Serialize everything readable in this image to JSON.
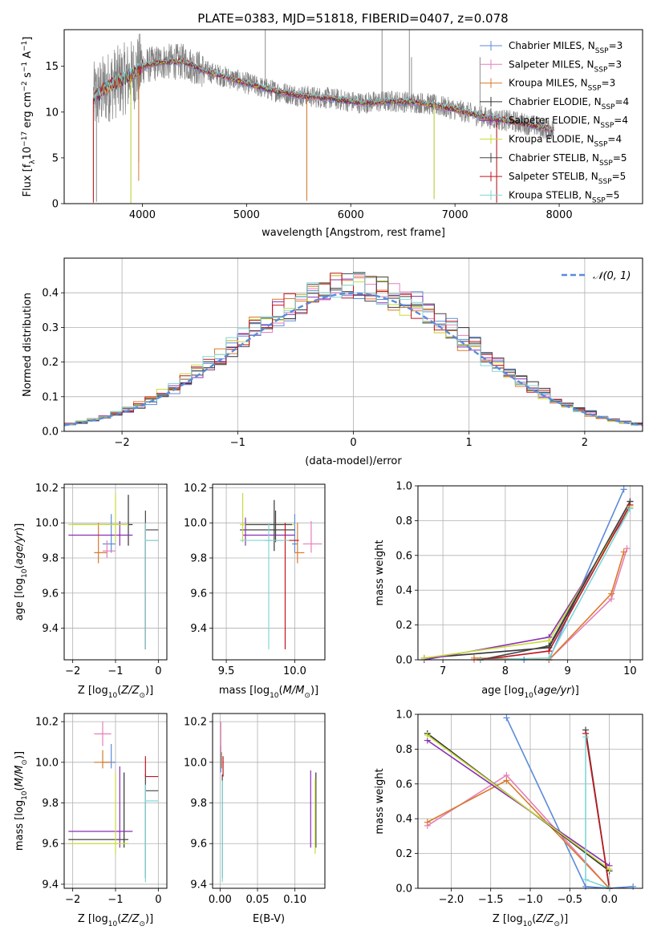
{
  "title": "PLATE=0383, MJD=51818, FIBERID=0407, z=0.078",
  "colors": {
    "chab_miles": "#5b8bd9",
    "salp_miles": "#e57fb8",
    "krou_miles": "#d97a2b",
    "chab_elodie": "#333333",
    "salp_elodie": "#8a2fb5",
    "krou_elodie": "#c8dc3c",
    "chab_stelib": "#444444",
    "salp_stelib": "#c0161e",
    "krou_stelib": "#7fd6d6",
    "data": "#808080",
    "grid": "#b0b0b0",
    "normal": "#5b8bd9"
  },
  "chart_data": [
    {
      "id": "spectrum",
      "type": "line",
      "xlabel": "wavelength [Angstrom, rest frame]",
      "ylabel": "Flux [f_λ10^-17 erg cm^-2 s^-1 A^-1]",
      "xlim": [
        3250,
        8800
      ],
      "ylim": [
        0,
        19
      ],
      "xticks": [
        4000,
        5000,
        6000,
        7000,
        8000
      ],
      "yticks": [
        0,
        5,
        10,
        15
      ],
      "legend": [
        {
          "label": "Chabrier MILES, N",
          "sub": "SSP",
          "tail": "=3",
          "color": "chab_miles"
        },
        {
          "label": "Salpeter MILES, N",
          "sub": "SSP",
          "tail": "=3",
          "color": "salp_miles"
        },
        {
          "label": "Kroupa MILES, N",
          "sub": "SSP",
          "tail": "=3",
          "color": "krou_miles"
        },
        {
          "label": "Chabrier ELODIE, N",
          "sub": "SSP",
          "tail": "=4",
          "color": "chab_elodie"
        },
        {
          "label": "Salpeter ELODIE, N",
          "sub": "SSP",
          "tail": "=4",
          "color": "salp_elodie"
        },
        {
          "label": "Kroupa ELODIE, N",
          "sub": "SSP",
          "tail": "=4",
          "color": "krou_elodie"
        },
        {
          "label": "Chabrier STELIB, N",
          "sub": "SSP",
          "tail": "=5",
          "color": "chab_stelib"
        },
        {
          "label": "Salpeter STELIB, N",
          "sub": "SSP",
          "tail": "=5",
          "color": "salp_stelib"
        },
        {
          "label": "Kroupa STELIB, N",
          "sub": "SSP",
          "tail": "=5",
          "color": "krou_stelib"
        }
      ],
      "continuum": [
        [
          3530,
          11.5
        ],
        [
          3700,
          13.0
        ],
        [
          3900,
          14.0
        ],
        [
          4000,
          15.0
        ],
        [
          4200,
          15.5
        ],
        [
          4400,
          15.5
        ],
        [
          4600,
          14.5
        ],
        [
          4900,
          13.5
        ],
        [
          5200,
          12.5
        ],
        [
          5500,
          11.8
        ],
        [
          5800,
          11.5
        ],
        [
          6100,
          11.0
        ],
        [
          6400,
          11.2
        ],
        [
          6700,
          11.0
        ],
        [
          7000,
          10.3
        ],
        [
          7300,
          9.4
        ],
        [
          7600,
          8.9
        ],
        [
          7800,
          8.4
        ],
        [
          7950,
          8.0
        ]
      ],
      "spikes": [
        [
          3530,
          0.3
        ],
        [
          3560,
          0.2
        ],
        [
          3890,
          0.1
        ],
        [
          3965,
          4.5
        ],
        [
          5180,
          19
        ],
        [
          5578,
          0.5
        ],
        [
          6300,
          19
        ],
        [
          6562,
          19
        ],
        [
          6583,
          16
        ],
        [
          6800,
          0.5
        ],
        [
          7240,
          16
        ],
        [
          7400,
          0.2
        ]
      ]
    },
    {
      "id": "residuals",
      "type": "line",
      "xlabel": "(data-model)/error",
      "ylabel": "Normed distribution",
      "xlim": [
        -2.5,
        2.5
      ],
      "ylim": [
        0,
        0.5
      ],
      "xticks": [
        -2,
        -1,
        0,
        1,
        2
      ],
      "yticks": [
        0.0,
        0.1,
        0.2,
        0.3,
        0.4
      ],
      "legend": "𝒩(0, 1)",
      "bin_width": 0.1
    },
    {
      "id": "z_age",
      "type": "scatter",
      "xlabel": "Z [log10(Z/Z⊙)]",
      "ylabel": "age  [log10(age/yr)]",
      "xlim": [
        -2.2,
        0.2
      ],
      "ylim": [
        9.22,
        10.22
      ],
      "xticks": [
        -2,
        -1,
        0
      ],
      "yticks": [
        9.4,
        9.6,
        9.8,
        10.0,
        10.2
      ],
      "points": [
        {
          "c": "chab_miles",
          "x": -1.1,
          "xerr": [
            0.2,
            0.1
          ],
          "y": 9.88,
          "yerr": [
            0.05,
            0.17
          ]
        },
        {
          "c": "salp_miles",
          "x": -1.2,
          "xerr": [
            0.1,
            0.2
          ],
          "y": 9.84,
          "yerr": [
            0.04,
            0.06
          ]
        },
        {
          "c": "krou_miles",
          "x": -1.4,
          "xerr": [
            0.1,
            0.2
          ],
          "y": 9.83,
          "yerr": [
            0.06,
            0.17
          ]
        },
        {
          "c": "chab_elodie",
          "x": -0.7,
          "xerr": [
            1.3,
            0.1
          ],
          "y": 9.99,
          "yerr": [
            0.12,
            0.17
          ]
        },
        {
          "c": "salp_elodie",
          "x": -0.9,
          "xerr": [
            1.2,
            0.3
          ],
          "y": 9.93,
          "yerr": [
            0.06,
            0.08
          ]
        },
        {
          "c": "krou_elodie",
          "x": -1.0,
          "xerr": [
            1.1,
            0.3
          ],
          "y": 9.99,
          "yerr": [
            0.1,
            0.18
          ]
        },
        {
          "c": "chab_stelib",
          "x": -0.3,
          "xerr": [
            0.0,
            0.3
          ],
          "y": 9.96,
          "yerr": [
            0.68,
            0.11
          ]
        },
        {
          "c": "salp_stelib",
          "x": -0.3,
          "xerr": [
            0.0,
            0.3
          ],
          "y": 9.9,
          "yerr": [
            0.62,
            0.1
          ]
        },
        {
          "c": "krou_stelib",
          "x": -0.3,
          "xerr": [
            0.0,
            0.3
          ],
          "y": 9.9,
          "yerr": [
            0.62,
            0.1
          ]
        }
      ]
    },
    {
      "id": "mass_age",
      "type": "scatter",
      "xlabel": "mass [log10(M/M⊙)]",
      "ylabel": "",
      "xlim": [
        9.4,
        10.22
      ],
      "ylim": [
        9.22,
        10.22
      ],
      "xticks": [
        9.5,
        10.0
      ],
      "yticks": [
        9.4,
        9.6,
        9.8,
        10.0,
        10.2
      ],
      "points": [
        {
          "c": "chab_miles",
          "x": 10.0,
          "xerr": [
            0.02,
            0.02
          ],
          "y": 9.88,
          "yerr": [
            0.05,
            0.17
          ]
        },
        {
          "c": "salp_miles",
          "x": 10.12,
          "xerr": [
            0.06,
            0.08
          ],
          "y": 9.88,
          "yerr": [
            0.05,
            0.13
          ]
        },
        {
          "c": "krou_miles",
          "x": 10.02,
          "xerr": [
            0.02,
            0.05
          ],
          "y": 9.83,
          "yerr": [
            0.06,
            0.17
          ]
        },
        {
          "c": "chab_elodie",
          "x": 9.85,
          "xerr": [
            0.25,
            0.15
          ],
          "y": 9.96,
          "yerr": [
            0.12,
            0.17
          ]
        },
        {
          "c": "salp_elodie",
          "x": 9.64,
          "xerr": [
            0.02,
            0.36
          ],
          "y": 9.93,
          "yerr": [
            0.06,
            0.1
          ]
        },
        {
          "c": "krou_elodie",
          "x": 9.62,
          "xerr": [
            0.02,
            0.38
          ],
          "y": 9.99,
          "yerr": [
            0.1,
            0.18
          ]
        },
        {
          "c": "chab_stelib",
          "x": 9.86,
          "xerr": [
            0.22,
            0.12
          ],
          "y": 9.99,
          "yerr": [
            0.1,
            0.08
          ]
        },
        {
          "c": "salp_stelib",
          "x": 9.93,
          "xerr": [
            0.15,
            0.1
          ],
          "y": 9.9,
          "yerr": [
            0.62,
            0.1
          ]
        },
        {
          "c": "krou_stelib",
          "x": 9.81,
          "xerr": [
            0.21,
            0.15
          ],
          "y": 9.9,
          "yerr": [
            0.62,
            0.1
          ]
        }
      ]
    },
    {
      "id": "age_weight",
      "type": "line",
      "xlabel": "age  [log10(age/yr)]",
      "ylabel": "mass weight",
      "xlim": [
        6.6,
        10.2
      ],
      "ylim": [
        0,
        1
      ],
      "xticks": [
        7,
        8,
        9,
        10
      ],
      "yticks": [
        0.0,
        0.2,
        0.4,
        0.6,
        0.8,
        1.0
      ],
      "series": [
        {
          "c": "chab_miles",
          "x": [
            7.6,
            8.3,
            8.7,
            9.9
          ],
          "y": [
            0.0,
            0.0,
            0.0,
            0.98
          ]
        },
        {
          "c": "salp_miles",
          "x": [
            7.5,
            8.7,
            9.7,
            9.95
          ],
          "y": [
            0.0,
            0.0,
            0.35,
            0.64
          ]
        },
        {
          "c": "krou_miles",
          "x": [
            7.5,
            8.7,
            9.7,
            9.9
          ],
          "y": [
            0.01,
            0.0,
            0.38,
            0.62
          ]
        },
        {
          "c": "chab_elodie",
          "x": [
            6.7,
            8.7,
            10.0
          ],
          "y": [
            0.01,
            0.07,
            0.91
          ]
        },
        {
          "c": "salp_elodie",
          "x": [
            6.7,
            8.7,
            10.0
          ],
          "y": [
            0.0,
            0.13,
            0.87
          ]
        },
        {
          "c": "krou_elodie",
          "x": [
            6.7,
            8.7,
            10.0
          ],
          "y": [
            0.01,
            0.11,
            0.88
          ]
        },
        {
          "c": "chab_stelib",
          "x": [
            7.6,
            8.7,
            10.0
          ],
          "y": [
            0.0,
            0.08,
            0.91
          ]
        },
        {
          "c": "salp_stelib",
          "x": [
            7.6,
            8.7,
            10.0
          ],
          "y": [
            0.0,
            0.05,
            0.89
          ]
        },
        {
          "c": "krou_stelib",
          "x": [
            7.6,
            8.7,
            10.0
          ],
          "y": [
            0.0,
            0.01,
            0.87
          ]
        }
      ]
    },
    {
      "id": "z_mass",
      "type": "scatter",
      "xlabel": "Z [log10(Z/Z⊙)]",
      "ylabel": "mass [log10(M/M⊙)]",
      "xlim": [
        -2.2,
        0.2
      ],
      "ylim": [
        9.38,
        10.24
      ],
      "xticks": [
        -2,
        -1,
        0
      ],
      "yticks": [
        9.4,
        9.6,
        9.8,
        10.0,
        10.2
      ],
      "points": [
        {
          "c": "chab_miles",
          "x": -1.1,
          "xerr": [
            0.2,
            0.1
          ],
          "y": 10.0,
          "yerr": [
            0.03,
            0.09
          ]
        },
        {
          "c": "salp_miles",
          "x": -1.3,
          "xerr": [
            0.2,
            0.2
          ],
          "y": 10.14,
          "yerr": [
            0.06,
            0.06
          ]
        },
        {
          "c": "krou_miles",
          "x": -1.3,
          "xerr": [
            0.2,
            0.2
          ],
          "y": 10.0,
          "yerr": [
            0.03,
            0.06
          ]
        },
        {
          "c": "chab_elodie",
          "x": -0.8,
          "xerr": [
            1.3,
            0.1
          ],
          "y": 9.62,
          "yerr": [
            0.04,
            0.33
          ]
        },
        {
          "c": "salp_elodie",
          "x": -0.9,
          "xerr": [
            1.2,
            0.3
          ],
          "y": 9.66,
          "yerr": [
            0.08,
            0.32
          ]
        },
        {
          "c": "krou_elodie",
          "x": -1.0,
          "xerr": [
            1.1,
            0.3
          ],
          "y": 9.6,
          "yerr": [
            0.05,
            0.35
          ]
        },
        {
          "c": "chab_stelib",
          "x": -0.3,
          "xerr": [
            0.0,
            0.3
          ],
          "y": 9.86,
          "yerr": [
            0.43,
            0.08
          ]
        },
        {
          "c": "salp_stelib",
          "x": -0.3,
          "xerr": [
            0.0,
            0.3
          ],
          "y": 9.93,
          "yerr": [
            0.0,
            0.1
          ]
        },
        {
          "c": "krou_stelib",
          "x": -0.3,
          "xerr": [
            0.0,
            0.3
          ],
          "y": 9.81,
          "yerr": [
            0.4,
            0.08
          ]
        }
      ]
    },
    {
      "id": "ebv_mass",
      "type": "scatter",
      "xlabel": "E(B-V)",
      "ylabel": "",
      "xlim": [
        -0.01,
        0.14
      ],
      "ylim": [
        9.38,
        10.24
      ],
      "xticks": [
        0.0,
        0.05,
        0.1
      ],
      "yticks": [
        9.4,
        9.6,
        9.8,
        10.0,
        10.2
      ],
      "points": [
        {
          "c": "chab_miles",
          "x": 0.001,
          "y": 10.0,
          "yerr": [
            0.05,
            0.08
          ]
        },
        {
          "c": "salp_miles",
          "x": 0.001,
          "y": 10.1,
          "yerr": [
            0.05,
            0.1
          ]
        },
        {
          "c": "krou_miles",
          "x": 0.002,
          "y": 10.0,
          "yerr": [
            0.03,
            0.05
          ]
        },
        {
          "c": "chab_elodie",
          "x": 0.128,
          "y": 9.62,
          "yerr": [
            0.04,
            0.33
          ]
        },
        {
          "c": "salp_elodie",
          "x": 0.121,
          "y": 9.66,
          "yerr": [
            0.08,
            0.3
          ]
        },
        {
          "c": "krou_elodie",
          "x": 0.127,
          "y": 9.6,
          "yerr": [
            0.05,
            0.32
          ]
        },
        {
          "c": "chab_stelib",
          "x": 0.003,
          "y": 9.86,
          "yerr": [
            0.43,
            0.08
          ]
        },
        {
          "c": "salp_stelib",
          "x": 0.004,
          "y": 9.93,
          "yerr": [
            0.0,
            0.1
          ]
        },
        {
          "c": "krou_stelib",
          "x": 0.003,
          "y": 9.81,
          "yerr": [
            0.4,
            0.1
          ]
        }
      ]
    },
    {
      "id": "z_weight",
      "type": "line",
      "xlabel": "Z [log10(Z/Z⊙)]",
      "ylabel": "mass weight",
      "xlim": [
        -2.42,
        0.42
      ],
      "ylim": [
        0,
        1
      ],
      "xticks": [
        -2.0,
        -1.5,
        -1.0,
        -0.5,
        0.0
      ],
      "yticks": [
        0.0,
        0.2,
        0.4,
        0.6,
        0.8,
        1.0
      ],
      "series": [
        {
          "c": "chab_miles",
          "x": [
            -1.3,
            -0.3,
            0.0,
            0.3
          ],
          "y": [
            0.98,
            0.01,
            0.0,
            0.01
          ]
        },
        {
          "c": "salp_miles",
          "x": [
            -2.3,
            -1.3,
            0.0
          ],
          "y": [
            0.36,
            0.65,
            0.0
          ]
        },
        {
          "c": "krou_miles",
          "x": [
            -2.3,
            -1.3,
            0.0
          ],
          "y": [
            0.38,
            0.62,
            0.0
          ]
        },
        {
          "c": "chab_elodie",
          "x": [
            -2.3,
            0.0
          ],
          "y": [
            0.89,
            0.1
          ]
        },
        {
          "c": "salp_elodie",
          "x": [
            -2.3,
            0.0
          ],
          "y": [
            0.85,
            0.13
          ]
        },
        {
          "c": "krou_elodie",
          "x": [
            -2.3,
            0.0
          ],
          "y": [
            0.88,
            0.11
          ]
        },
        {
          "c": "chab_stelib",
          "x": [
            -0.3,
            0.0
          ],
          "y": [
            0.91,
            0.0
          ]
        },
        {
          "c": "salp_stelib",
          "x": [
            -0.3,
            0.0
          ],
          "y": [
            0.89,
            0.0
          ]
        },
        {
          "c": "krou_stelib",
          "x": [
            -0.3,
            -0.3,
            0.0
          ],
          "y": [
            0.87,
            0.05,
            0.0
          ]
        }
      ]
    }
  ]
}
